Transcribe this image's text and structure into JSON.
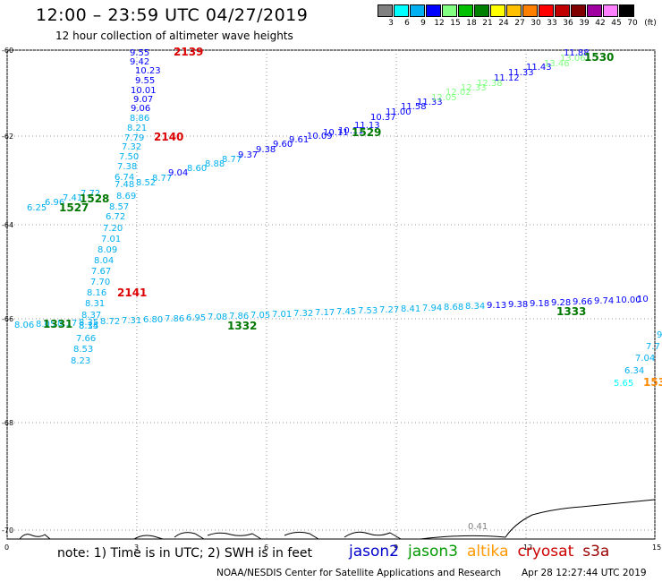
{
  "title": "12:00 – 23:59 UTC 04/27/2019",
  "subtitle": "12 hour collection of altimeter wave heights",
  "legend": {
    "unit": "(ft)",
    "colors": [
      "#808080",
      "#00ffff",
      "#00b0f0",
      "#0000ff",
      "#80ff80",
      "#00c000",
      "#008000",
      "#ffff00",
      "#ffc000",
      "#ff8000",
      "#ff0000",
      "#c00000",
      "#800000",
      "#a000a0",
      "#ff80ff",
      "#000000"
    ],
    "labels": [
      "3",
      "6",
      "9",
      "12",
      "15",
      "18",
      "21",
      "24",
      "27",
      "30",
      "33",
      "36",
      "39",
      "42",
      "45",
      "70"
    ]
  },
  "axes": {
    "y_labels": [
      "-60",
      "-62",
      "-64",
      "-66",
      "-68",
      "-70"
    ],
    "x_labels": [
      "0",
      "3",
      "6",
      "9",
      "12",
      "15"
    ]
  },
  "note": "note:  1) Time is in UTC;  2) SWH is in feet",
  "satellites": [
    {
      "name": "jason2",
      "color": "#0000cc"
    },
    {
      "name": "jason3",
      "color": "#009900"
    },
    {
      "name": "altika",
      "color": "#ff9900"
    },
    {
      "name": "cryosat",
      "color": "#cc0000"
    },
    {
      "name": "s3a",
      "color": "#990000"
    }
  ],
  "credit": "NOAA/NESDIS Center for Satellite Applications and Research",
  "timestamp": "Apr 28 12:27:44 UTC 2019",
  "passes": [
    {
      "label": "2139",
      "color": "#dd0000"
    },
    {
      "label": "2140",
      "color": "#dd0000"
    },
    {
      "label": "2141",
      "color": "#dd0000"
    },
    {
      "label": "1530",
      "color": "#007700"
    },
    {
      "label": "1529",
      "color": "#007700"
    },
    {
      "label": "1528",
      "color": "#007700"
    },
    {
      "label": "1527",
      "color": "#007700"
    },
    {
      "label": "1331",
      "color": "#007700"
    },
    {
      "label": "1332",
      "color": "#007700"
    },
    {
      "label": "1333",
      "color": "#007700"
    },
    {
      "label": "153",
      "color": "#ff8800"
    }
  ],
  "track_vertical": [
    {
      "v": "9.55",
      "c": "#0000ff"
    },
    {
      "v": "9.42",
      "c": "#0000ff"
    },
    {
      "v": "10.23",
      "c": "#0000ff"
    },
    {
      "v": "9.55",
      "c": "#0000ff"
    },
    {
      "v": "10.01",
      "c": "#0000ff"
    },
    {
      "v": "9.07",
      "c": "#0000ff"
    },
    {
      "v": "9.06",
      "c": "#0000ff"
    },
    {
      "v": "8.86",
      "c": "#00b0f0"
    },
    {
      "v": "8.21",
      "c": "#00b0f0"
    },
    {
      "v": "7.79",
      "c": "#00b0f0"
    },
    {
      "v": "7.32",
      "c": "#00b0f0"
    },
    {
      "v": "7.50",
      "c": "#00b0f0"
    },
    {
      "v": "7.38",
      "c": "#00b0f0"
    },
    {
      "v": "6.74",
      "c": "#00b0f0"
    },
    {
      "v": "7.48",
      "c": "#00b0f0"
    },
    {
      "v": "8.69",
      "c": "#00b0f0"
    },
    {
      "v": "8.57",
      "c": "#00b0f0"
    },
    {
      "v": "6.72",
      "c": "#00b0f0"
    },
    {
      "v": "7.20",
      "c": "#00b0f0"
    },
    {
      "v": "7.01",
      "c": "#00b0f0"
    },
    {
      "v": "8.09",
      "c": "#00b0f0"
    },
    {
      "v": "8.04",
      "c": "#00b0f0"
    },
    {
      "v": "7.67",
      "c": "#00b0f0"
    },
    {
      "v": "7.70",
      "c": "#00b0f0"
    },
    {
      "v": "8.16",
      "c": "#00b0f0"
    },
    {
      "v": "8.31",
      "c": "#00b0f0"
    },
    {
      "v": "8.37",
      "c": "#00b0f0"
    },
    {
      "v": "8.14",
      "c": "#00b0f0"
    },
    {
      "v": "8.35",
      "c": "#00b0f0"
    },
    {
      "v": "7.66",
      "c": "#00b0f0"
    },
    {
      "v": "8.53",
      "c": "#00b0f0"
    },
    {
      "v": "8.23",
      "c": "#00b0f0"
    }
  ],
  "track_diag": [
    {
      "v": "6.25",
      "c": "#00b0f0"
    },
    {
      "v": "6.96",
      "c": "#00b0f0"
    },
    {
      "v": "7.41",
      "c": "#00b0f0"
    },
    {
      "v": "7.72",
      "c": "#00b0f0"
    },
    {
      "v": "8.52",
      "c": "#00b0f0"
    },
    {
      "v": "8.77",
      "c": "#00b0f0"
    },
    {
      "v": "9.04",
      "c": "#0000ff"
    },
    {
      "v": "8.60",
      "c": "#00b0f0"
    },
    {
      "v": "8.88",
      "c": "#00b0f0"
    },
    {
      "v": "8.77",
      "c": "#00b0f0"
    },
    {
      "v": "9.37",
      "c": "#0000ff"
    },
    {
      "v": "9.38",
      "c": "#0000ff"
    },
    {
      "v": "9.60",
      "c": "#0000ff"
    },
    {
      "v": "9.61",
      "c": "#0000ff"
    },
    {
      "v": "10.09",
      "c": "#0000ff"
    },
    {
      "v": "10.11",
      "c": "#0000ff"
    },
    {
      "v": "10.11",
      "c": "#0000ff"
    },
    {
      "v": "11.13",
      "c": "#0000ff"
    },
    {
      "v": "10.37",
      "c": "#0000ff"
    },
    {
      "v": "11.00",
      "c": "#0000ff"
    },
    {
      "v": "11.58",
      "c": "#0000ff"
    },
    {
      "v": "11.33",
      "c": "#0000ff"
    },
    {
      "v": "12.05",
      "c": "#80ff80"
    },
    {
      "v": "12.02",
      "c": "#80ff80"
    },
    {
      "v": "12.33",
      "c": "#80ff80"
    },
    {
      "v": "12.38",
      "c": "#80ff80"
    },
    {
      "v": "11.12",
      "c": "#0000ff"
    },
    {
      "v": "11.33",
      "c": "#0000ff"
    },
    {
      "v": "11.43",
      "c": "#0000ff"
    },
    {
      "v": "13.46",
      "c": "#80ff80"
    },
    {
      "v": "13.06",
      "c": "#80ff80"
    },
    {
      "v": "11.88",
      "c": "#0000ff"
    }
  ],
  "track_horizontal": [
    {
      "v": "8.06",
      "c": "#00b0f0"
    },
    {
      "v": "8.05",
      "c": "#00b0f0"
    },
    {
      "v": "8.17",
      "c": "#00b0f0"
    },
    {
      "v": "8.35",
      "c": "#00b0f0"
    },
    {
      "v": "8.72",
      "c": "#00b0f0"
    },
    {
      "v": "7.31",
      "c": "#00b0f0"
    },
    {
      "v": "6.80",
      "c": "#00b0f0"
    },
    {
      "v": "7.86",
      "c": "#00b0f0"
    },
    {
      "v": "6.95",
      "c": "#00b0f0"
    },
    {
      "v": "7.08",
      "c": "#00b0f0"
    },
    {
      "v": "7.86",
      "c": "#00b0f0"
    },
    {
      "v": "7.05",
      "c": "#00b0f0"
    },
    {
      "v": "7.01",
      "c": "#00b0f0"
    },
    {
      "v": "7.32",
      "c": "#00b0f0"
    },
    {
      "v": "7.17",
      "c": "#00b0f0"
    },
    {
      "v": "7.45",
      "c": "#00b0f0"
    },
    {
      "v": "7.53",
      "c": "#00b0f0"
    },
    {
      "v": "7.27",
      "c": "#00b0f0"
    },
    {
      "v": "8.41",
      "c": "#00b0f0"
    },
    {
      "v": "7.94",
      "c": "#00b0f0"
    },
    {
      "v": "8.68",
      "c": "#00b0f0"
    },
    {
      "v": "8.34",
      "c": "#00b0f0"
    },
    {
      "v": "9.13",
      "c": "#0000ff"
    },
    {
      "v": "9.38",
      "c": "#0000ff"
    },
    {
      "v": "9.18",
      "c": "#0000ff"
    },
    {
      "v": "9.28",
      "c": "#0000ff"
    },
    {
      "v": "9.66",
      "c": "#0000ff"
    },
    {
      "v": "9.74",
      "c": "#0000ff"
    },
    {
      "v": "10.00",
      "c": "#0000ff"
    },
    {
      "v": "10",
      "c": "#0000ff"
    }
  ],
  "track_right": [
    {
      "v": "9",
      "c": "#00b0f0"
    },
    {
      "v": "7.7",
      "c": "#00b0f0"
    },
    {
      "v": "7.04",
      "c": "#00b0f0"
    },
    {
      "v": "6.34",
      "c": "#00b0f0"
    },
    {
      "v": "5.65",
      "c": "#00ffff"
    }
  ],
  "land_value": {
    "v": "0.41",
    "c": "#808080"
  }
}
